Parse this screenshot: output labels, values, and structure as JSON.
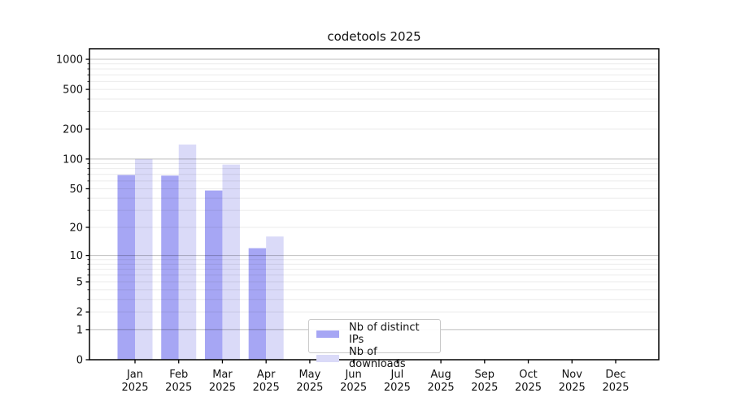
{
  "chart_data": {
    "type": "bar",
    "title": "codetools 2025",
    "months": [
      "Jan",
      "Feb",
      "Mar",
      "Apr",
      "May",
      "Jun",
      "Jul",
      "Aug",
      "Sep",
      "Oct",
      "Nov",
      "Dec"
    ],
    "year": "2025",
    "categories": [
      "Jan 2025",
      "Feb 2025",
      "Mar 2025",
      "Apr 2025",
      "May 2025",
      "Jun 2025",
      "Jul 2025",
      "Aug 2025",
      "Sep 2025",
      "Oct 2025",
      "Nov 2025",
      "Dec 2025"
    ],
    "series": [
      {
        "name": "Nb of distinct IPs",
        "color": "#a6a6f4",
        "values": [
          69,
          68,
          48,
          12,
          null,
          null,
          null,
          null,
          null,
          null,
          null,
          null
        ]
      },
      {
        "name": "Nb of downloads",
        "color": "#dadaf8",
        "values": [
          100,
          140,
          88,
          16,
          null,
          null,
          null,
          null,
          null,
          null,
          null,
          null
        ]
      }
    ],
    "y_scale": "log1p",
    "y_tick_values": [
      0,
      1,
      2,
      5,
      10,
      20,
      50,
      100,
      200,
      500,
      1000
    ],
    "y_tick_labels": [
      "0",
      "1",
      "2",
      "5",
      "10",
      "20",
      "50",
      "100",
      "200",
      "500",
      "1000"
    ],
    "ylim": [
      0,
      1276
    ],
    "grid": true,
    "legend_position": "lower center"
  },
  "colors": {
    "background": "#ffffff",
    "spine": "#000000",
    "grid_major": "rgba(0,0,0,0.26)",
    "grid_minor": "rgba(0,0,0,0.08)",
    "tick_text": "#111111",
    "legend_border": "#c9c9c9"
  }
}
